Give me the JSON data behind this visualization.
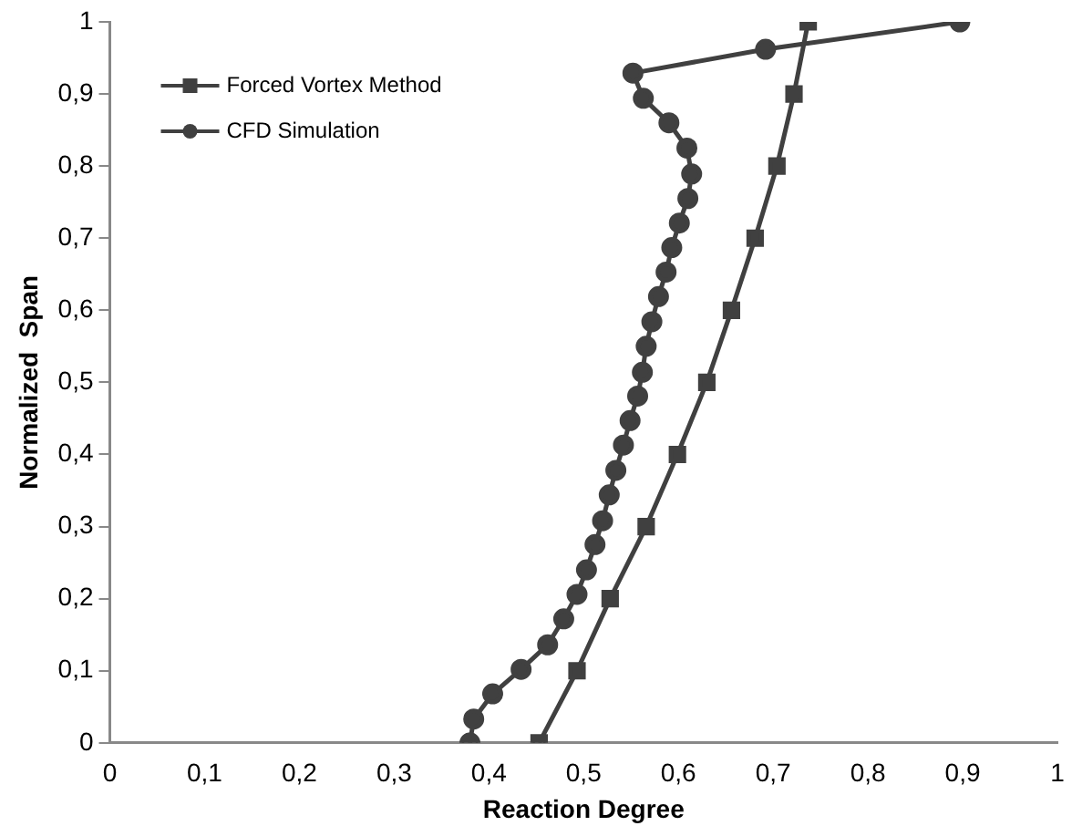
{
  "chart_data": {
    "type": "line",
    "xlabel": "Reaction Degree",
    "ylabel": "Normalized  Span",
    "xlim": [
      0,
      1
    ],
    "ylim": [
      0,
      1
    ],
    "xticks": [
      0,
      {
        "value": 0.1,
        "label": "0,1"
      },
      {
        "value": 0.2,
        "label": "0,2"
      },
      {
        "value": 0.3,
        "label": "0,3"
      },
      {
        "value": 0.4,
        "label": "0,4"
      },
      {
        "value": 0.5,
        "label": "0,5"
      },
      {
        "value": 0.6,
        "label": "0,6"
      },
      {
        "value": 0.7,
        "label": "0,7"
      },
      {
        "value": 0.8,
        "label": "0,8"
      },
      {
        "value": 0.9,
        "label": "0,9"
      },
      1
    ],
    "yticks": [
      0,
      {
        "value": 0.1,
        "label": "0,1"
      },
      {
        "value": 0.2,
        "label": "0,2"
      },
      {
        "value": 0.3,
        "label": "0,3"
      },
      {
        "value": 0.4,
        "label": "0,4"
      },
      {
        "value": 0.5,
        "label": "0,5"
      },
      {
        "value": 0.6,
        "label": "0,6"
      },
      {
        "value": 0.7,
        "label": "0,7"
      },
      {
        "value": 0.8,
        "label": "0,8"
      },
      {
        "value": 0.9,
        "label": "0,9"
      },
      1
    ],
    "grid": false,
    "legend": "top left",
    "line_style": "solid",
    "series": [
      {
        "name": "Forced Vortex Method",
        "color": "#404040",
        "marker": "square",
        "x": [
          0.453,
          0.493,
          0.528,
          0.566,
          0.599,
          0.63,
          0.656,
          0.681,
          0.704,
          0.722,
          0.737
        ],
        "values": [
          0,
          0.1,
          0.2,
          0.3,
          0.4,
          0.5,
          0.6,
          0.7,
          0.8,
          0.9,
          1
        ]
      },
      {
        "name": "CFD Simulation",
        "color": "#404040",
        "marker": "circle",
        "x": [
          0.38,
          0.384,
          0.404,
          0.434,
          0.462,
          0.479,
          0.493,
          0.503,
          0.512,
          0.52,
          0.527,
          0.534,
          0.542,
          0.549,
          0.557,
          0.562,
          0.566,
          0.572,
          0.579,
          0.587,
          0.593,
          0.601,
          0.61,
          0.614,
          0.609,
          0.59,
          0.563,
          0.552,
          0.692,
          0.897
        ],
        "values": [
          0,
          0.033,
          0.068,
          0.102,
          0.136,
          0.172,
          0.206,
          0.24,
          0.275,
          0.308,
          0.344,
          0.378,
          0.413,
          0.447,
          0.481,
          0.514,
          0.55,
          0.584,
          0.619,
          0.653,
          0.687,
          0.721,
          0.755,
          0.789,
          0.825,
          0.86,
          0.894,
          0.929,
          0.962,
          1
        ]
      }
    ]
  }
}
